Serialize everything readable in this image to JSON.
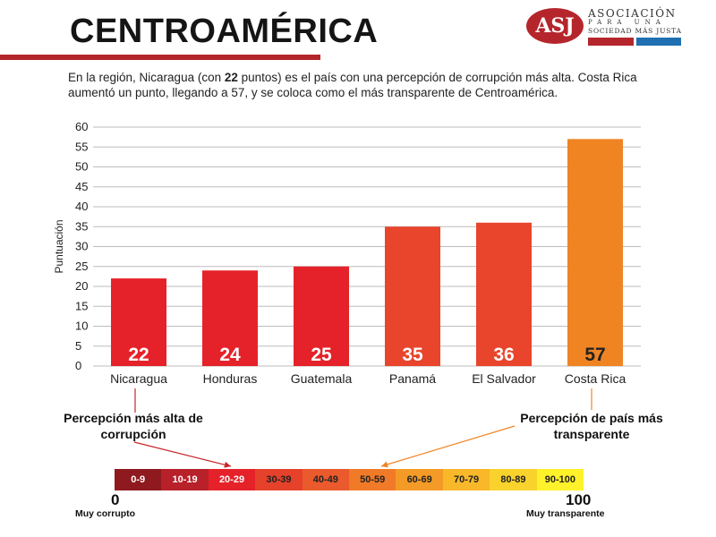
{
  "header": {
    "title": "CENTROAMÉRICA",
    "logo": {
      "mark": "ASJ",
      "line1": "ASOCIACIÓN",
      "line2": "PARA UNA",
      "line3": "SOCIEDAD MÁS JUSTA",
      "badge_colors": [
        "#b5262c",
        "#1f6fb2"
      ]
    }
  },
  "description": {
    "part1": "En la región, Nicaragua (con ",
    "bold": "22",
    "part2": " puntos) es el país con una percepción de corrupción más alta. Costa Rica aumentó un punto, llegando a 57, y se coloca como el más transparente de Centroamérica."
  },
  "chart_data": {
    "type": "bar",
    "categories": [
      "Nicaragua",
      "Honduras",
      "Guatemala",
      "Panamá",
      "El Salvador",
      "Costa Rica"
    ],
    "values": [
      22,
      24,
      25,
      35,
      36,
      57
    ],
    "colors": [
      "#e52229",
      "#e52229",
      "#e52229",
      "#e8452c",
      "#e8452c",
      "#f08423"
    ],
    "label_colors": [
      "#ffffff",
      "#ffffff",
      "#ffffff",
      "#ffffff",
      "#ffffff",
      "#222222"
    ],
    "title": "",
    "xlabel": "",
    "ylabel": "Puntuación",
    "ylim": [
      0,
      60
    ],
    "yticks": [
      0,
      5,
      10,
      15,
      20,
      25,
      30,
      35,
      40,
      45,
      50,
      55,
      60
    ],
    "grid": true
  },
  "annotations": {
    "left": "Percepción más alta de corrupción",
    "right": "Percepción de país más transparente",
    "arrow_left_color": "#c8252b",
    "arrow_right_color": "#f08423"
  },
  "scale": {
    "cells": [
      {
        "label": "0-9",
        "color": "#8e1a1f",
        "text": "#ffffff"
      },
      {
        "label": "10-19",
        "color": "#b8202a",
        "text": "#ffffff"
      },
      {
        "label": "20-29",
        "color": "#e52229",
        "text": "#ffffff"
      },
      {
        "label": "30-39",
        "color": "#e6412b",
        "text": "#222222"
      },
      {
        "label": "40-49",
        "color": "#ea5a2c",
        "text": "#222222"
      },
      {
        "label": "50-59",
        "color": "#f07a28",
        "text": "#222222"
      },
      {
        "label": "60-69",
        "color": "#f49a26",
        "text": "#222222"
      },
      {
        "label": "70-79",
        "color": "#f8b82a",
        "text": "#222222"
      },
      {
        "label": "80-89",
        "color": "#fad22c",
        "text": "#222222"
      },
      {
        "label": "90-100",
        "color": "#fff12a",
        "text": "#222222"
      }
    ],
    "min": "0",
    "max": "100",
    "min_caption": "Muy corrupto",
    "max_caption": "Muy transparente"
  }
}
